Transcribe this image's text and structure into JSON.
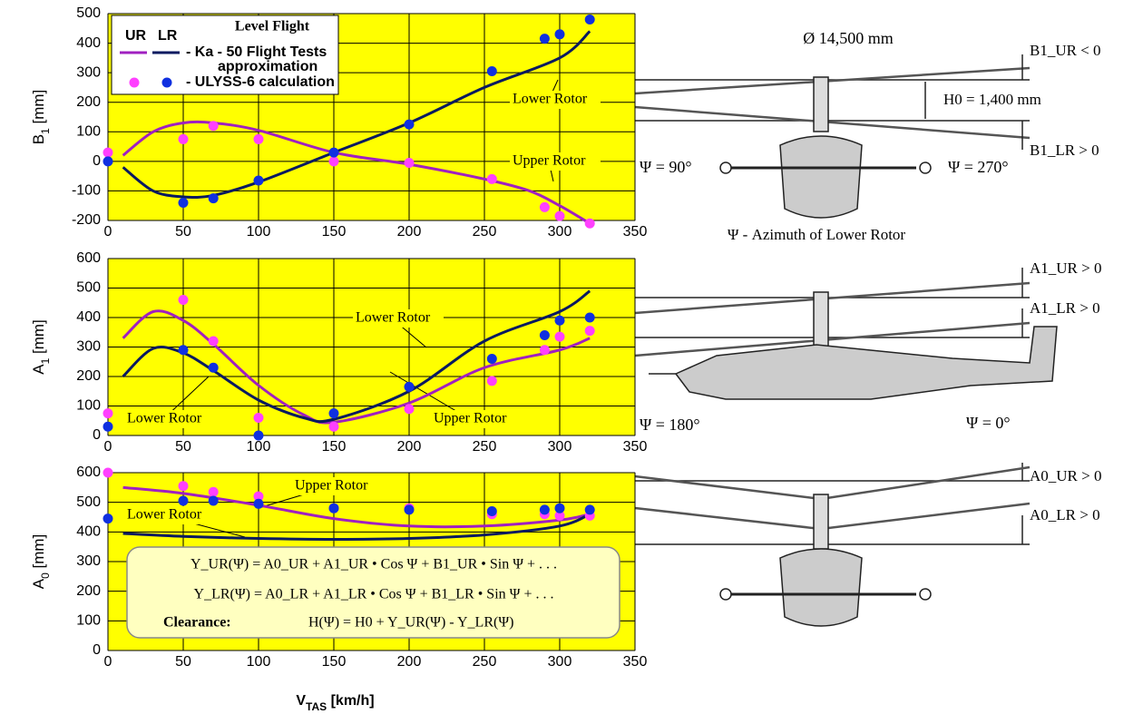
{
  "chart_data": [
    {
      "type": "line",
      "ylabel": "B",
      "ylabel_sub": "1",
      "ylabel_unit": " [mm]",
      "xlim": [
        0,
        350
      ],
      "xticks": [
        0,
        50,
        100,
        150,
        200,
        250,
        300,
        350
      ],
      "ylim": [
        -200,
        500
      ],
      "yticks": [
        -200,
        -100,
        0,
        100,
        200,
        300,
        400,
        500
      ],
      "grid": true,
      "legend": {
        "title": "Level Flight",
        "columns": [
          "UR",
          "LR"
        ],
        "entries": [
          "- Ka - 50  Flight  Tests",
          "approximation",
          "- ULYSS-6 calculation"
        ]
      },
      "annotations": [
        "Lower Rotor",
        "Upper Rotor"
      ],
      "series": [
        {
          "style": "line",
          "color": "#a020c0",
          "x": [
            10,
            30,
            50,
            70,
            100,
            150,
            200,
            250,
            280,
            300,
            320
          ],
          "values": [
            20,
            100,
            130,
            130,
            105,
            30,
            -10,
            -60,
            -100,
            -150,
            -210
          ]
        },
        {
          "style": "line",
          "color": "#0a1a60",
          "x": [
            10,
            30,
            50,
            70,
            100,
            150,
            200,
            250,
            300,
            320
          ],
          "values": [
            -20,
            -100,
            -120,
            -115,
            -70,
            30,
            130,
            250,
            350,
            440
          ]
        },
        {
          "style": "points",
          "color": "#ff40ff",
          "x": [
            0,
            50,
            70,
            100,
            150,
            200,
            255,
            290,
            300,
            320
          ],
          "values": [
            30,
            75,
            120,
            75,
            0,
            -5,
            -60,
            -155,
            -185,
            -210
          ]
        },
        {
          "style": "points",
          "color": "#1030e0",
          "x": [
            0,
            50,
            70,
            100,
            150,
            200,
            255,
            290,
            300,
            320
          ],
          "values": [
            0,
            -140,
            -125,
            -65,
            30,
            125,
            305,
            415,
            430,
            480
          ]
        }
      ]
    },
    {
      "type": "line",
      "ylabel": "A",
      "ylabel_sub": "1",
      "ylabel_unit": " [mm]",
      "xlim": [
        0,
        350
      ],
      "xticks": [
        0,
        50,
        100,
        150,
        200,
        250,
        300,
        350
      ],
      "ylim": [
        0,
        600
      ],
      "yticks": [
        0,
        100,
        200,
        300,
        400,
        500,
        600
      ],
      "grid": true,
      "annotations": [
        "Lower Rotor",
        "Lower Rotor",
        "Upper Rotor"
      ],
      "series": [
        {
          "style": "line",
          "color": "#a020c0",
          "x": [
            10,
            30,
            50,
            70,
            100,
            130,
            150,
            200,
            250,
            300,
            320
          ],
          "values": [
            330,
            420,
            390,
            310,
            170,
            70,
            45,
            110,
            230,
            290,
            330
          ]
        },
        {
          "style": "line",
          "color": "#0a1a60",
          "x": [
            10,
            30,
            50,
            70,
            100,
            130,
            150,
            200,
            250,
            300,
            320
          ],
          "values": [
            200,
            295,
            280,
            220,
            120,
            60,
            55,
            150,
            320,
            420,
            490
          ]
        },
        {
          "style": "points",
          "color": "#ff40ff",
          "x": [
            0,
            50,
            70,
            100,
            150,
            200,
            255,
            290,
            300,
            320
          ],
          "values": [
            75,
            460,
            320,
            60,
            30,
            90,
            185,
            290,
            335,
            355
          ]
        },
        {
          "style": "points",
          "color": "#1030e0",
          "x": [
            0,
            50,
            70,
            100,
            150,
            200,
            255,
            290,
            300,
            320
          ],
          "values": [
            30,
            290,
            230,
            0,
            75,
            165,
            260,
            340,
            390,
            400
          ]
        }
      ]
    },
    {
      "type": "line",
      "ylabel": "A",
      "ylabel_sub": "0",
      "ylabel_unit": " [mm]",
      "xlabel": "V",
      "xlabel_sub": "TAS",
      "xlabel_unit": " [km/h]",
      "xlim": [
        0,
        350
      ],
      "xticks": [
        0,
        50,
        100,
        150,
        200,
        250,
        300,
        350
      ],
      "ylim": [
        0,
        600
      ],
      "yticks": [
        0,
        100,
        200,
        300,
        400,
        500,
        600
      ],
      "grid": true,
      "annotations": [
        "Upper Rotor",
        "Lower Rotor"
      ],
      "formula": [
        "Y_UR(Ψ) = A0_UR + A1_UR • Cos Ψ + B1_UR • Sin Ψ +  . . .",
        "Y_LR(Ψ) = A0_LR + A1_LR • Cos Ψ + B1_LR • Sin Ψ +  . . .",
        "Clearance:",
        "H(Ψ) = H0 + Y_UR(Ψ)  - Y_LR(Ψ)"
      ],
      "series": [
        {
          "style": "line",
          "color": "#a020c0",
          "x": [
            10,
            50,
            100,
            150,
            200,
            250,
            300,
            320
          ],
          "values": [
            550,
            530,
            490,
            445,
            420,
            420,
            440,
            460
          ]
        },
        {
          "style": "line",
          "color": "#0a1a60",
          "x": [
            10,
            50,
            100,
            150,
            200,
            250,
            300,
            320
          ],
          "values": [
            395,
            385,
            378,
            375,
            378,
            390,
            420,
            460
          ]
        },
        {
          "style": "points",
          "color": "#ff40ff",
          "x": [
            0,
            50,
            70,
            100,
            150,
            200,
            255,
            290,
            300,
            320
          ],
          "values": [
            600,
            555,
            535,
            520,
            480,
            480,
            460,
            460,
            455,
            455
          ]
        },
        {
          "style": "points",
          "color": "#1030e0",
          "x": [
            0,
            50,
            70,
            100,
            150,
            200,
            255,
            290,
            300,
            320
          ],
          "values": [
            445,
            505,
            505,
            495,
            480,
            475,
            470,
            475,
            480,
            475
          ]
        }
      ]
    }
  ],
  "diagram": {
    "diameter": "Ø 14,500 mm",
    "b1_ur": "B1_UR < 0",
    "h0": "H0 = 1,400 mm",
    "b1_lr": "B1_LR > 0",
    "psi_90": "Ψ = 90°",
    "psi_270": "Ψ = 270°",
    "azimuth": "Ψ  -  Azimuth of Lower Rotor",
    "a1_ur": "A1_UR > 0",
    "a1_lr": "A1_LR > 0",
    "psi_180": "Ψ = 180°",
    "psi_0": "Ψ = 0°",
    "a0_ur": "A0_UR > 0",
    "a0_lr": "A0_LR > 0"
  }
}
